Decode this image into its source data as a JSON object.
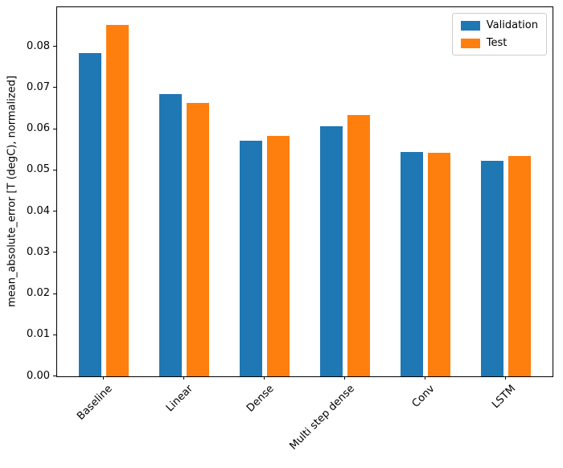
{
  "chart_data": {
    "type": "bar",
    "categories": [
      "Baseline",
      "Linear",
      "Dense",
      "Multi step dense",
      "Conv",
      "LSTM"
    ],
    "series": [
      {
        "name": "Validation",
        "color": "#1f77b4",
        "values": [
          0.0785,
          0.0686,
          0.0572,
          0.0607,
          0.0545,
          0.0524
        ]
      },
      {
        "name": "Test",
        "color": "#ff7f0e",
        "values": [
          0.0853,
          0.0663,
          0.0583,
          0.0634,
          0.0543,
          0.0534
        ]
      }
    ],
    "title": "",
    "xlabel": "",
    "ylabel": "mean_absolute_error [T (degC), normalized]",
    "ylim": [
      0,
      0.0896
    ],
    "yticks": [
      0.0,
      0.01,
      0.02,
      0.03,
      0.04,
      0.05,
      0.06,
      0.07,
      0.08
    ],
    "grid": false,
    "legend": {
      "position": "upper right",
      "entries": [
        "Validation",
        "Test"
      ]
    }
  }
}
